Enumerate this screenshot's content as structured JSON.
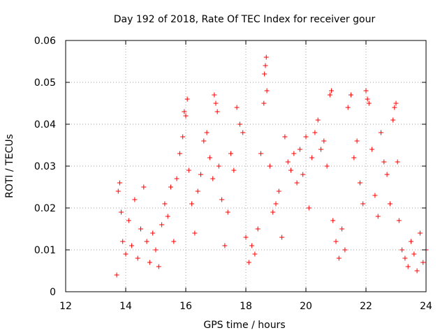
{
  "chart_data": {
    "type": "scatter",
    "title": "Day 192 of 2018, Rate Of TEC Index for receiver gour",
    "xlabel": "GPS time / hours",
    "ylabel": "ROTI / TECUs",
    "xlim": [
      12,
      24
    ],
    "ylim": [
      0,
      0.06
    ],
    "x_ticks": [
      "12",
      "14",
      "16",
      "18",
      "20",
      "22",
      "24"
    ],
    "y_ticks": [
      "0",
      "0.01",
      "0.02",
      "0.03",
      "0.04",
      "0.05",
      "0.06"
    ],
    "grid": true,
    "marker": "plus",
    "series": [
      {
        "color": "#ff0000",
        "points": [
          [
            13.7,
            0.004
          ],
          [
            13.75,
            0.024
          ],
          [
            13.8,
            0.026
          ],
          [
            13.85,
            0.019
          ],
          [
            13.9,
            0.012
          ],
          [
            14.0,
            0.009
          ],
          [
            14.1,
            0.017
          ],
          [
            14.2,
            0.011
          ],
          [
            14.3,
            0.022
          ],
          [
            14.4,
            0.008
          ],
          [
            14.5,
            0.015
          ],
          [
            14.6,
            0.025
          ],
          [
            14.7,
            0.012
          ],
          [
            14.8,
            0.007
          ],
          [
            14.9,
            0.014
          ],
          [
            15.0,
            0.01
          ],
          [
            15.1,
            0.006
          ],
          [
            15.2,
            0.016
          ],
          [
            15.3,
            0.021
          ],
          [
            15.4,
            0.018
          ],
          [
            15.5,
            0.025
          ],
          [
            15.6,
            0.012
          ],
          [
            15.7,
            0.027
          ],
          [
            15.8,
            0.033
          ],
          [
            15.9,
            0.037
          ],
          [
            15.95,
            0.043
          ],
          [
            16.0,
            0.042
          ],
          [
            16.05,
            0.046
          ],
          [
            16.1,
            0.029
          ],
          [
            16.2,
            0.021
          ],
          [
            16.3,
            0.014
          ],
          [
            16.4,
            0.024
          ],
          [
            16.5,
            0.028
          ],
          [
            16.6,
            0.036
          ],
          [
            16.7,
            0.038
          ],
          [
            16.8,
            0.032
          ],
          [
            16.9,
            0.027
          ],
          [
            16.95,
            0.047
          ],
          [
            17.0,
            0.045
          ],
          [
            17.05,
            0.043
          ],
          [
            17.1,
            0.03
          ],
          [
            17.2,
            0.022
          ],
          [
            17.3,
            0.011
          ],
          [
            17.4,
            0.019
          ],
          [
            17.5,
            0.033
          ],
          [
            17.6,
            0.029
          ],
          [
            17.7,
            0.044
          ],
          [
            17.8,
            0.04
          ],
          [
            17.9,
            0.038
          ],
          [
            18.0,
            0.013
          ],
          [
            18.1,
            0.007
          ],
          [
            18.2,
            0.011
          ],
          [
            18.3,
            0.009
          ],
          [
            18.4,
            0.015
          ],
          [
            18.5,
            0.033
          ],
          [
            18.6,
            0.045
          ],
          [
            18.62,
            0.052
          ],
          [
            18.65,
            0.054
          ],
          [
            18.68,
            0.056
          ],
          [
            18.7,
            0.048
          ],
          [
            18.8,
            0.03
          ],
          [
            18.9,
            0.019
          ],
          [
            19.0,
            0.021
          ],
          [
            19.1,
            0.024
          ],
          [
            19.2,
            0.013
          ],
          [
            19.3,
            0.037
          ],
          [
            19.4,
            0.031
          ],
          [
            19.5,
            0.029
          ],
          [
            19.6,
            0.033
          ],
          [
            19.7,
            0.026
          ],
          [
            19.8,
            0.034
          ],
          [
            19.9,
            0.028
          ],
          [
            20.0,
            0.037
          ],
          [
            20.1,
            0.02
          ],
          [
            20.2,
            0.032
          ],
          [
            20.3,
            0.038
          ],
          [
            20.4,
            0.041
          ],
          [
            20.5,
            0.034
          ],
          [
            20.6,
            0.036
          ],
          [
            20.7,
            0.03
          ],
          [
            20.8,
            0.047
          ],
          [
            20.85,
            0.048
          ],
          [
            20.9,
            0.017
          ],
          [
            21.0,
            0.012
          ],
          [
            21.1,
            0.008
          ],
          [
            21.2,
            0.015
          ],
          [
            21.3,
            0.01
          ],
          [
            21.4,
            0.044
          ],
          [
            21.5,
            0.047
          ],
          [
            21.6,
            0.032
          ],
          [
            21.7,
            0.036
          ],
          [
            21.8,
            0.026
          ],
          [
            21.9,
            0.021
          ],
          [
            22.0,
            0.048
          ],
          [
            22.05,
            0.046
          ],
          [
            22.1,
            0.045
          ],
          [
            22.2,
            0.034
          ],
          [
            22.3,
            0.023
          ],
          [
            22.4,
            0.018
          ],
          [
            22.5,
            0.038
          ],
          [
            22.6,
            0.031
          ],
          [
            22.7,
            0.028
          ],
          [
            22.8,
            0.021
          ],
          [
            22.9,
            0.041
          ],
          [
            22.95,
            0.044
          ],
          [
            23.0,
            0.045
          ],
          [
            23.05,
            0.031
          ],
          [
            23.1,
            0.017
          ],
          [
            23.2,
            0.01
          ],
          [
            23.3,
            0.008
          ],
          [
            23.4,
            0.006
          ],
          [
            23.5,
            0.012
          ],
          [
            23.6,
            0.009
          ],
          [
            23.7,
            0.005
          ],
          [
            23.8,
            0.014
          ],
          [
            23.9,
            0.007
          ],
          [
            24.0,
            0.01
          ]
        ]
      }
    ]
  }
}
